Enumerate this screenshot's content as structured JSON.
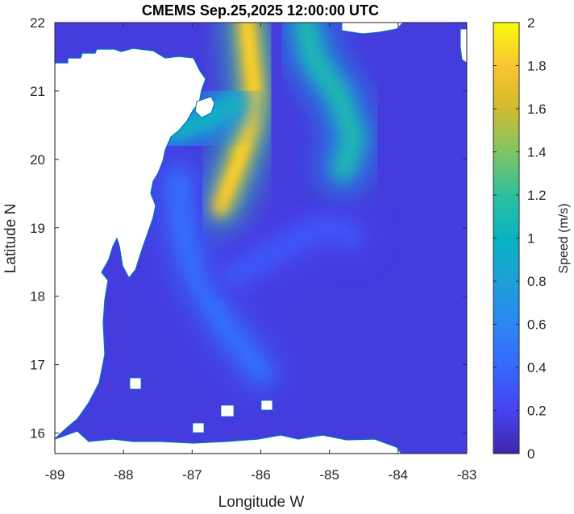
{
  "chart_data": {
    "type": "heatmap",
    "title": "CMEMS Sep.25,2025 12:00:00 UTC",
    "xlabel": "Longitude W",
    "ylabel": "Latitude N",
    "xlim": [
      -89,
      -83
    ],
    "ylim": [
      15.7,
      22
    ],
    "x_ticks": [
      -89,
      -88,
      -87,
      -86,
      -85,
      -84,
      -83
    ],
    "y_ticks": [
      16,
      17,
      18,
      19,
      20,
      21,
      22
    ],
    "colorbar": {
      "label": "Speed (m/s)",
      "range": [
        0,
        2
      ],
      "ticks": [
        0,
        0.2,
        0.4,
        0.6,
        0.8,
        1,
        1.2,
        1.4,
        1.6,
        1.8,
        2
      ],
      "colormap": "parula"
    },
    "background_speed_ms": 0.15,
    "features": [
      {
        "name": "Yucatan Current core",
        "speed_ms": 1.75,
        "path": [
          [
            -86.6,
            19.3
          ],
          [
            -86.35,
            19.9
          ],
          [
            -86.15,
            20.5
          ],
          [
            -86.1,
            21.0
          ],
          [
            -86.15,
            21.5
          ],
          [
            -86.2,
            22.0
          ]
        ]
      },
      {
        "name": "Coastal jet",
        "speed_ms": 1.0,
        "path": [
          [
            -87.3,
            20.4
          ],
          [
            -86.85,
            20.55
          ],
          [
            -86.4,
            20.8
          ]
        ]
      },
      {
        "name": "Eastern filament",
        "speed_ms": 1.1,
        "path": [
          [
            -84.8,
            19.85
          ],
          [
            -84.65,
            20.3
          ],
          [
            -84.85,
            20.9
          ],
          [
            -85.25,
            21.5
          ],
          [
            -85.35,
            22.0
          ]
        ]
      },
      {
        "name": "Southern flow band",
        "speed_ms": 0.45,
        "path": [
          [
            -86.0,
            16.9
          ],
          [
            -86.55,
            17.6
          ],
          [
            -86.95,
            18.3
          ],
          [
            -87.15,
            19.0
          ],
          [
            -87.2,
            19.7
          ]
        ]
      },
      {
        "name": "Eddy northern arm",
        "speed_ms": 0.3,
        "path": [
          [
            -86.4,
            18.3
          ],
          [
            -85.7,
            18.7
          ],
          [
            -85.1,
            19.0
          ],
          [
            -84.7,
            18.9
          ]
        ]
      }
    ],
    "grid": false
  },
  "colors": {
    "land": "#ffffff",
    "coastline": "#0072bd",
    "axis": "#262626"
  }
}
